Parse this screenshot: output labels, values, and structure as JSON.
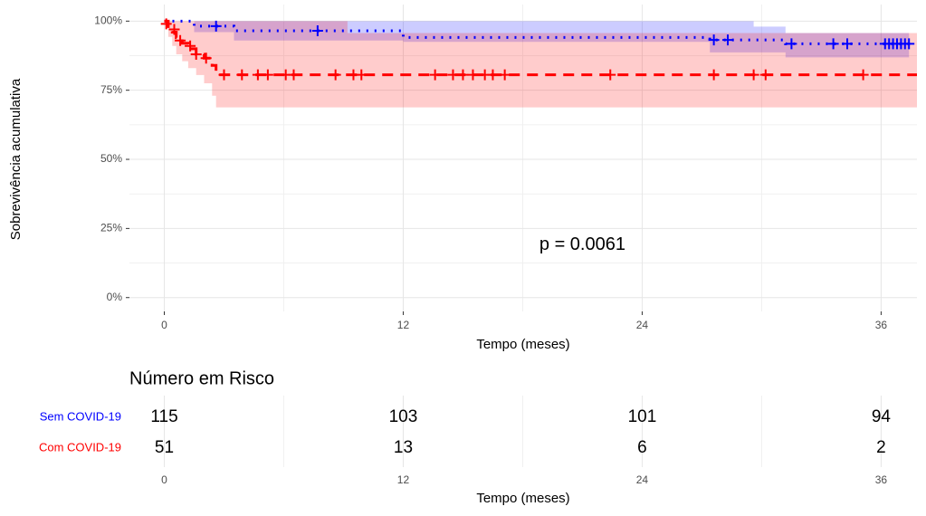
{
  "chart_data": {
    "type": "survival",
    "x_label": "Tempo (meses)",
    "y_label": "Sobrevivência acumulativa",
    "annotation": {
      "text": "p = 0.0061",
      "x": 21,
      "y": 19
    },
    "xlim": [
      -1.75,
      37.8
    ],
    "ylim": [
      -5,
      106
    ],
    "xticks": [
      0,
      12,
      24,
      36
    ],
    "yticks": [
      {
        "value": 0,
        "label": "0%"
      },
      {
        "value": 25,
        "label": "25%"
      },
      {
        "value": 50,
        "label": "50%"
      },
      {
        "value": 75,
        "label": "75%"
      },
      {
        "value": 100,
        "label": "100%"
      }
    ],
    "x_minor_ticks": [
      6,
      18,
      30
    ],
    "y_minor_ticks": [
      12.5,
      37.5,
      62.5,
      87.5
    ],
    "grid": true,
    "series": [
      {
        "name": "Sem COVID-19",
        "color": "#0000ff",
        "linestyle": "dotted",
        "time": [
          0,
          1.5,
          3.5,
          12,
          27.4,
          29.6,
          31.2,
          37.4
        ],
        "surv": [
          100,
          98.2,
          96.5,
          94.1,
          93.2,
          93.2,
          91.8,
          91.8
        ],
        "lower": [
          100,
          96,
          93,
          92.5,
          88.7,
          88.7,
          86.9,
          86.9
        ],
        "upper": [
          100,
          100,
          100,
          100,
          100,
          98,
          95.7,
          95.7
        ],
        "censor_x": [
          2.6,
          7.7,
          27.6,
          28.3,
          31.5,
          33.6,
          34.3,
          36.2,
          36.4,
          36.6,
          36.8,
          37.0,
          37.2,
          37.4
        ],
        "censor_y": [
          98.2,
          96.5,
          93.2,
          93.2,
          91.8,
          91.8,
          91.8,
          91.8,
          91.8,
          91.8,
          91.8,
          91.8,
          91.8,
          91.8
        ]
      },
      {
        "name": "Com COVID-19",
        "color": "#ff0000",
        "linestyle": "dashed",
        "time": [
          0,
          0.2,
          0.4,
          0.6,
          0.9,
          1.2,
          1.6,
          2.0,
          2.4,
          2.6,
          9.2,
          37.8
        ],
        "surv": [
          100,
          98,
          96,
          94,
          92,
          90,
          88,
          86.6,
          84,
          80.6,
          80.6,
          80.6
        ],
        "lower": [
          100,
          94.3,
          91,
          88,
          85.5,
          83,
          80.5,
          77.5,
          73,
          68.8,
          68.8,
          68.8
        ],
        "upper": [
          100,
          100,
          100,
          100,
          100,
          100,
          100,
          100,
          100,
          100,
          95.7,
          95.7
        ],
        "censor_x": [
          0.1,
          0.5,
          0.8,
          1.3,
          1.6,
          2.1,
          3.0,
          3.9,
          4.7,
          5.2,
          6.1,
          6.5,
          8.6,
          9.5,
          9.9,
          13.6,
          14.5,
          15.0,
          15.5,
          16.1,
          16.5,
          17.1,
          22.4,
          27.6,
          29.6,
          30.2,
          35.1
        ],
        "censor_y": [
          99,
          97,
          93,
          91,
          88,
          86.6,
          80.6,
          80.6,
          80.6,
          80.6,
          80.6,
          80.6,
          80.6,
          80.6,
          80.6,
          80.6,
          80.6,
          80.6,
          80.6,
          80.6,
          80.6,
          80.6,
          80.6,
          80.6,
          80.6,
          80.6,
          80.6
        ]
      }
    ],
    "risk_table": {
      "title": "Número em Risco",
      "x_label": "Tempo (meses)",
      "xticks": [
        0,
        12,
        24,
        36
      ],
      "rows": [
        {
          "name": "Sem COVID-19",
          "color": "#0000ff",
          "values": [
            115,
            103,
            101,
            94
          ]
        },
        {
          "name": "Com COVID-19",
          "color": "#ff0000",
          "values": [
            51,
            13,
            6,
            2
          ]
        }
      ]
    }
  }
}
